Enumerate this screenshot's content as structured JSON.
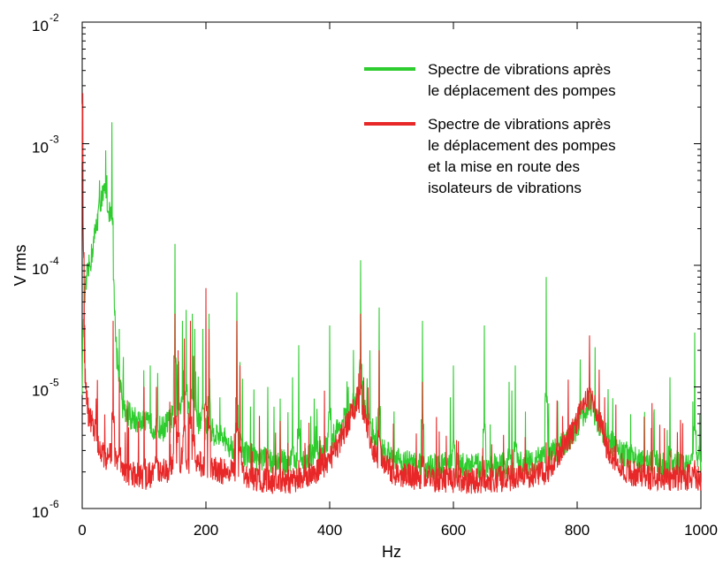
{
  "chart_data": {
    "type": "line",
    "xlabel": "Hz",
    "ylabel": "V rms",
    "xlim": [
      0,
      1000
    ],
    "ylim": [
      1e-06,
      0.01
    ],
    "yscale": "log",
    "grid": false,
    "x_ticks": [
      0,
      200,
      400,
      600,
      800,
      1000
    ],
    "x_tick_labels": [
      "0",
      "200",
      "400",
      "600",
      "800",
      "1000"
    ],
    "y_ticks": [
      {
        "base": "10",
        "exp": "-2",
        "value": 0.01
      },
      {
        "base": "10",
        "exp": "-3",
        "value": 0.001
      },
      {
        "base": "10",
        "exp": "-4",
        "value": 0.0001
      },
      {
        "base": "10",
        "exp": "-5",
        "value": 1e-05
      },
      {
        "base": "10",
        "exp": "-6",
        "value": 1e-06
      }
    ],
    "legend_position": "top-right",
    "series": [
      {
        "name_lines": [
          "Spectre de vibrations après",
          "le déplacement des pompes"
        ],
        "color": "#2ecc2e",
        "baseline": [
          [
            0,
            1e-05
          ],
          [
            3,
            5e-05
          ],
          [
            8,
            8e-05
          ],
          [
            15,
            0.00012
          ],
          [
            22,
            0.0002
          ],
          [
            30,
            0.00035
          ],
          [
            38,
            0.0004
          ],
          [
            45,
            0.00025
          ],
          [
            50,
            0.0001
          ],
          [
            55,
            2e-05
          ],
          [
            65,
            7e-06
          ],
          [
            80,
            5.5e-06
          ],
          [
            100,
            5e-06
          ],
          [
            130,
            4.5e-06
          ],
          [
            150,
            6e-06
          ],
          [
            170,
            7e-06
          ],
          [
            190,
            5e-06
          ],
          [
            220,
            4e-06
          ],
          [
            250,
            3e-06
          ],
          [
            280,
            2.6e-06
          ],
          [
            320,
            2.4e-06
          ],
          [
            360,
            2.5e-06
          ],
          [
            390,
            3e-06
          ],
          [
            420,
            5e-06
          ],
          [
            445,
            8e-06
          ],
          [
            460,
            6e-06
          ],
          [
            480,
            3e-06
          ],
          [
            520,
            2.4e-06
          ],
          [
            560,
            2.2e-06
          ],
          [
            600,
            2.3e-06
          ],
          [
            650,
            2.2e-06
          ],
          [
            700,
            2.3e-06
          ],
          [
            750,
            2.6e-06
          ],
          [
            790,
            3.8e-06
          ],
          [
            810,
            6e-06
          ],
          [
            820,
            7.5e-06
          ],
          [
            835,
            5e-06
          ],
          [
            860,
            3.2e-06
          ],
          [
            900,
            2.4e-06
          ],
          [
            950,
            2.3e-06
          ],
          [
            1000,
            2.5e-06
          ]
        ],
        "peaks": [
          [
            1,
            3e-05
          ],
          [
            48,
            0.0015
          ],
          [
            40,
            0.00055
          ],
          [
            33,
            0.00045
          ],
          [
            28,
            0.0005
          ],
          [
            60,
            3e-05
          ],
          [
            110,
            1.5e-05
          ],
          [
            122,
            1.3e-05
          ],
          [
            150,
            0.00015
          ],
          [
            162,
            3.5e-05
          ],
          [
            168,
            4.3e-05
          ],
          [
            178,
            4e-05
          ],
          [
            182,
            3e-05
          ],
          [
            195,
            3e-05
          ],
          [
            205,
            4e-05
          ],
          [
            250,
            6e-05
          ],
          [
            255,
            1.6e-05
          ],
          [
            300,
            1e-05
          ],
          [
            320,
            8e-06
          ],
          [
            340,
            1.2e-05
          ],
          [
            350,
            2.2e-05
          ],
          [
            375,
            8e-06
          ],
          [
            400,
            3.2e-05
          ],
          [
            430,
            1e-05
          ],
          [
            450,
            0.00011
          ],
          [
            465,
            2e-05
          ],
          [
            480,
            4.5e-05
          ],
          [
            550,
            3.5e-05
          ],
          [
            600,
            1.5e-05
          ],
          [
            650,
            3.2e-05
          ],
          [
            690,
            1.1e-05
          ],
          [
            700,
            1.5e-05
          ],
          [
            750,
            8e-05
          ],
          [
            850,
            6e-06
          ],
          [
            950,
            1.2e-05
          ],
          [
            990,
            2.8e-05
          ]
        ]
      },
      {
        "name_lines": [
          "Spectre de vibrations après",
          "le déplacement des pompes",
          "et la mise en route des",
          "isolateurs de vibrations"
        ],
        "color": "#e82828",
        "baseline": [
          [
            0,
            0.0026
          ],
          [
            2,
            2e-05
          ],
          [
            5,
            1.2e-05
          ],
          [
            10,
            6e-06
          ],
          [
            20,
            4.5e-06
          ],
          [
            30,
            3e-06
          ],
          [
            40,
            2.5e-06
          ],
          [
            50,
            3e-06
          ],
          [
            60,
            2.3e-06
          ],
          [
            80,
            1.9e-06
          ],
          [
            100,
            1.8e-06
          ],
          [
            120,
            2e-06
          ],
          [
            140,
            2.1e-06
          ],
          [
            160,
            2.5e-06
          ],
          [
            200,
            2.3e-06
          ],
          [
            230,
            2e-06
          ],
          [
            260,
            1.9e-06
          ],
          [
            300,
            1.7e-06
          ],
          [
            340,
            1.7e-06
          ],
          [
            370,
            1.9e-06
          ],
          [
            400,
            2.5e-06
          ],
          [
            430,
            5e-06
          ],
          [
            445,
            8e-06
          ],
          [
            455,
            6.5e-06
          ],
          [
            470,
            3e-06
          ],
          [
            500,
            2e-06
          ],
          [
            540,
            1.8e-06
          ],
          [
            600,
            1.7e-06
          ],
          [
            650,
            1.7e-06
          ],
          [
            700,
            1.8e-06
          ],
          [
            750,
            2e-06
          ],
          [
            790,
            4e-06
          ],
          [
            810,
            7e-06
          ],
          [
            820,
            8.5e-06
          ],
          [
            830,
            6.5e-06
          ],
          [
            850,
            3e-06
          ],
          [
            880,
            2e-06
          ],
          [
            920,
            1.8e-06
          ],
          [
            960,
            1.8e-06
          ],
          [
            1000,
            1.8e-06
          ]
        ],
        "peaks": [
          [
            1,
            0.0026
          ],
          [
            3,
            1.5e-05
          ],
          [
            50,
            3.5e-05
          ],
          [
            60,
            1.2e-05
          ],
          [
            100,
            1e-05
          ],
          [
            120,
            1e-05
          ],
          [
            150,
            4e-05
          ],
          [
            155,
            2e-05
          ],
          [
            165,
            2.5e-05
          ],
          [
            175,
            3.5e-05
          ],
          [
            180,
            1.8e-05
          ],
          [
            200,
            6.5e-05
          ],
          [
            205,
            3e-05
          ],
          [
            250,
            3.5e-05
          ],
          [
            255,
            1.5e-05
          ],
          [
            300,
            3e-06
          ],
          [
            350,
            2.5e-06
          ],
          [
            400,
            2.7e-06
          ],
          [
            445,
            1e-05
          ],
          [
            450,
            4e-05
          ],
          [
            455,
            1.2e-05
          ],
          [
            480,
            2e-05
          ],
          [
            550,
            1.1e-05
          ],
          [
            650,
            2.5e-06
          ],
          [
            750,
            3.5e-06
          ],
          [
            825,
            8e-06
          ],
          [
            950,
            3e-06
          ],
          [
            990,
            2.5e-06
          ]
        ]
      }
    ]
  }
}
